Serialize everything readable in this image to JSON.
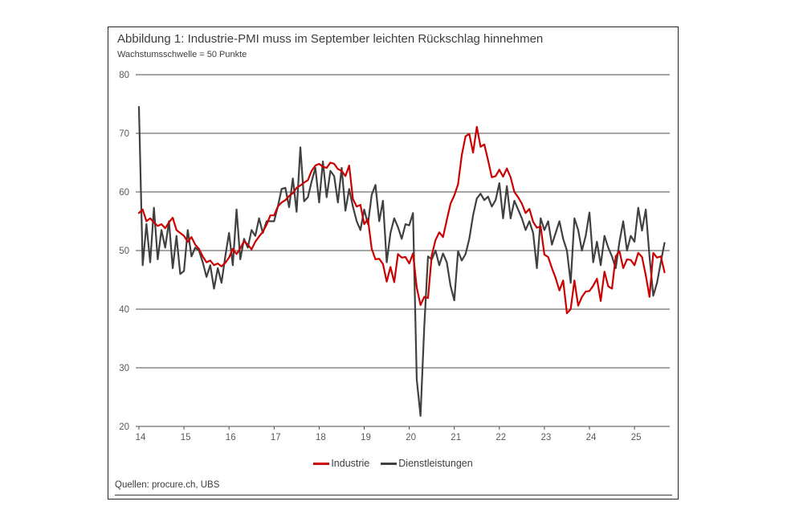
{
  "figure": {
    "title": "Abbildung 1: Industrie-PMI muss im September leichten Rückschlag hinnehmen",
    "subtitle": "Wachstumsschwelle = 50 Punkte",
    "source": "Quellen: procure.ch, UBS"
  },
  "legend": {
    "items": [
      {
        "label": "Industrie",
        "color": "#cc0000"
      },
      {
        "label": "Dienstleistungen",
        "color": "#404040"
      }
    ]
  },
  "colors": {
    "industrie": "#cc0000",
    "dienstleistungen": "#404040",
    "grid": "#4d4d4d",
    "axis_text": "#595959",
    "border": "#262626"
  },
  "chart_data": {
    "type": "line",
    "title": "Abbildung 1: Industrie-PMI muss im September leichten Rückschlag hinnehmen",
    "subtitle": "Wachstumsschwelle = 50 Punkte",
    "xlabel": "",
    "ylabel": "",
    "x_start_year": 2014,
    "x_months_per_point": 1,
    "xticks": [
      "14",
      "15",
      "16",
      "17",
      "18",
      "19",
      "20",
      "21",
      "22",
      "23",
      "24",
      "25"
    ],
    "yticks": [
      20,
      30,
      40,
      50,
      60,
      70,
      80
    ],
    "ylim": [
      20,
      80
    ],
    "grid": "horizontal-only",
    "legend_position": "bottom-center",
    "growth_threshold": 50,
    "series": [
      {
        "name": "Industrie",
        "color": "#cc0000",
        "values": [
          56.4,
          57.0,
          55.0,
          55.5,
          54.8,
          54.2,
          54.5,
          53.8,
          54.8,
          55.6,
          53.5,
          53.0,
          52.5,
          51.5,
          52.3,
          51.0,
          50.3,
          49.0,
          48.0,
          48.3,
          47.5,
          47.8,
          47.3,
          47.9,
          48.8,
          50.3,
          49.4,
          50.4,
          51.6,
          51.0,
          50.2,
          51.5,
          52.4,
          53.2,
          54.4,
          56.0,
          56.0,
          57.5,
          58.2,
          58.6,
          59.3,
          59.8,
          60.7,
          61.1,
          61.6,
          62.0,
          63.6,
          64.5,
          64.8,
          64.3,
          64.1,
          65.0,
          64.8,
          63.9,
          63.6,
          62.7,
          64.5,
          58.8,
          57.5,
          57.8,
          54.5,
          55.4,
          50.3,
          48.5,
          48.6,
          47.7,
          44.7,
          47.2,
          44.6,
          49.4,
          48.8,
          48.9,
          47.8,
          49.5,
          43.7,
          40.7,
          42.1,
          41.9,
          49.2,
          51.8,
          53.1,
          52.3,
          55.2,
          58.0,
          59.4,
          61.3,
          66.3,
          69.5,
          69.9,
          66.7,
          71.1,
          67.7,
          68.1,
          65.4,
          62.5,
          62.7,
          63.8,
          62.6,
          64.0,
          62.5,
          60.0,
          59.1,
          58.0,
          56.4,
          57.1,
          54.9,
          53.9,
          54.1,
          49.3,
          48.9,
          47.0,
          45.3,
          43.2,
          44.9,
          39.3,
          40.0,
          44.9,
          40.6,
          42.1,
          43.0,
          43.1,
          44.0,
          45.2,
          41.4,
          46.4,
          43.9,
          43.5,
          49.0,
          49.9,
          47.0,
          48.5,
          48.4,
          47.5,
          49.6,
          48.9,
          45.8,
          42.1,
          49.6,
          48.8,
          49.0,
          46.3
        ]
      },
      {
        "name": "Dienstleistungen",
        "color": "#404040",
        "values": [
          74.5,
          47.5,
          54.5,
          48.0,
          57.3,
          48.5,
          53.5,
          50.5,
          55.0,
          47.0,
          52.5,
          46.0,
          46.5,
          53.5,
          49.0,
          50.5,
          50.0,
          48.0,
          45.5,
          47.5,
          43.5,
          47.0,
          44.5,
          49.0,
          53.0,
          47.5,
          57.0,
          48.5,
          52.0,
          50.5,
          53.5,
          52.5,
          55.5,
          53.0,
          55.0,
          55.0,
          55.0,
          57.5,
          60.5,
          60.7,
          57.4,
          62.3,
          56.6,
          67.6,
          58.4,
          59.1,
          61.8,
          64.1,
          58.2,
          65.2,
          59.1,
          63.6,
          62.7,
          58.2,
          64.1,
          56.8,
          60.5,
          57.5,
          55.0,
          53.5,
          57.0,
          54.5,
          59.5,
          61.2,
          55.0,
          58.5,
          48.0,
          53.0,
          55.5,
          54.0,
          52.0,
          54.5,
          54.3,
          56.4,
          28.0,
          21.8,
          37.0,
          49.0,
          48.5,
          50.0,
          47.5,
          49.5,
          48.0,
          44.0,
          41.5,
          49.9,
          48.3,
          49.4,
          52.0,
          56.0,
          58.9,
          59.7,
          58.6,
          59.2,
          57.5,
          58.6,
          61.5,
          55.5,
          61.0,
          55.5,
          58.5,
          57.0,
          55.5,
          53.5,
          55.0,
          53.0,
          47.0,
          55.5,
          53.5,
          55.0,
          51.0,
          53.0,
          55.0,
          52.0,
          50.0,
          44.5,
          55.5,
          53.5,
          50.0,
          52.5,
          56.5,
          48.0,
          51.5,
          47.5,
          52.5,
          50.5,
          49.0,
          47.0,
          51.5,
          55.0,
          50.0,
          52.5,
          51.5,
          57.3,
          53.4,
          57.0,
          49.0,
          42.3,
          44.5,
          48.0,
          51.3
        ]
      }
    ]
  }
}
